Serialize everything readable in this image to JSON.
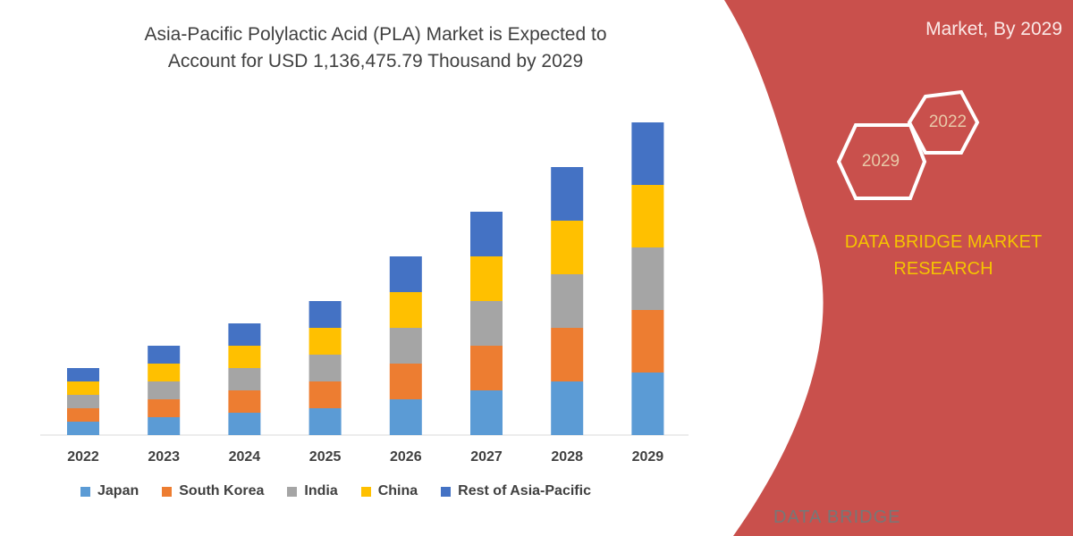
{
  "header": {
    "title_line1": "Asia-Pacific Polylactic Acid (PLA) Market is Expected to",
    "title_line2": "Account for USD 1,136,475.79 Thousand by 2029",
    "right_title": "Market, By 2029"
  },
  "badges": {
    "year_a": "2022",
    "year_b": "2029"
  },
  "brand": {
    "line1": "DATA BRIDGE MARKET",
    "line2": "RESEARCH",
    "logo": "DATA BRIDGE"
  },
  "colors": {
    "panel": "#c9504c",
    "brand_text": "#f5c400"
  },
  "chart_data": {
    "type": "bar",
    "stacked": true,
    "title": "Asia-Pacific Polylactic Acid (PLA) Market is Expected to Account for USD 1,136,475.79 Thousand by 2029",
    "categories": [
      "2022",
      "2023",
      "2024",
      "2025",
      "2026",
      "2027",
      "2028",
      "2029"
    ],
    "series": [
      {
        "name": "Japan",
        "color": "#5b9bd5",
        "values": [
          15,
          20,
          25,
          30,
          40,
          50,
          60,
          70
        ]
      },
      {
        "name": "South Korea",
        "color": "#ed7d31",
        "values": [
          15,
          20,
          25,
          30,
          40,
          50,
          60,
          70
        ]
      },
      {
        "name": "India",
        "color": "#a5a5a5",
        "values": [
          15,
          20,
          25,
          30,
          40,
          50,
          60,
          70
        ]
      },
      {
        "name": "China",
        "color": "#ffc000",
        "values": [
          15,
          20,
          25,
          30,
          40,
          50,
          60,
          70
        ]
      },
      {
        "name": "Rest of Asia-Pacific",
        "color": "#4472c4",
        "values": [
          15,
          20,
          25,
          30,
          40,
          50,
          60,
          70
        ]
      }
    ],
    "y_axis_shown": false,
    "grid": false,
    "legend": "bottom"
  }
}
